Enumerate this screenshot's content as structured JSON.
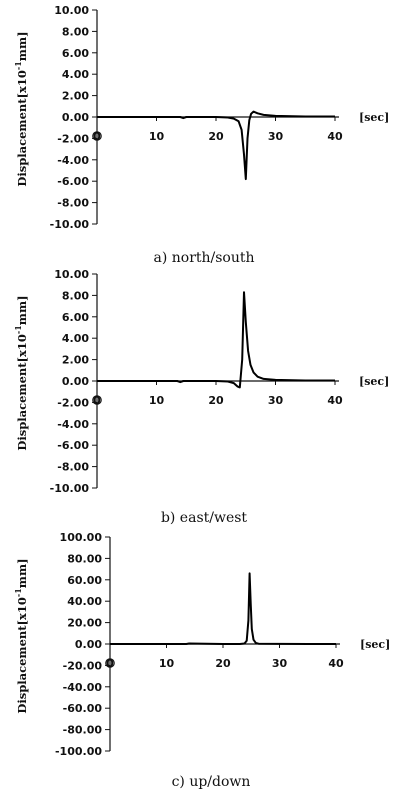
{
  "chart_data": [
    {
      "type": "line",
      "caption": "a) north/south",
      "ylabel": "Displacement[x10",
      "ylabel_exp": "-1",
      "ylabel_unit": "mm]",
      "xunit": "[sec]",
      "xlim": [
        0,
        40
      ],
      "ylim": [
        -10,
        10
      ],
      "yticks": [
        "10.00",
        "8.00",
        "6.00",
        "4.00",
        "2.00",
        "0.00",
        "-2.00",
        "-4.00",
        "-6.00",
        "-8.00",
        "-10.00"
      ],
      "xticks": [
        "0",
        "10",
        "20",
        "30",
        "40"
      ],
      "series": [
        {
          "x": [
            0,
            10,
            14,
            14.5,
            15,
            20,
            22,
            23,
            23.8,
            24.3,
            24.7,
            25.0,
            25.3,
            25.6,
            25.9,
            26.3,
            27,
            28,
            30,
            35,
            40
          ],
          "y": [
            0,
            0,
            0,
            -0.1,
            0,
            0,
            -0.05,
            -0.15,
            -0.4,
            -1.2,
            -3.5,
            -5.8,
            -2.0,
            -0.3,
            0.3,
            0.5,
            0.35,
            0.2,
            0.1,
            0.05,
            0.05
          ]
        }
      ]
    },
    {
      "type": "line",
      "caption": "b) east/west",
      "ylabel": "Displacement[x10",
      "ylabel_exp": "-1",
      "ylabel_unit": "mm]",
      "xunit": "[sec]",
      "xlim": [
        0,
        40
      ],
      "ylim": [
        -10,
        10
      ],
      "yticks": [
        "10.00",
        "8.00",
        "6.00",
        "4.00",
        "2.00",
        "0.00",
        "-2.00",
        "-4.00",
        "-6.00",
        "-8.00",
        "-10.00"
      ],
      "xticks": [
        "0",
        "10",
        "20",
        "30",
        "40"
      ],
      "series": [
        {
          "x": [
            0,
            10,
            13.5,
            14,
            14.5,
            20,
            22,
            23,
            23.6,
            24.0,
            24.4,
            24.7,
            25.0,
            25.4,
            25.8,
            26.3,
            27,
            28,
            30,
            35,
            40
          ],
          "y": [
            0,
            0,
            0,
            -0.1,
            0,
            0,
            -0.05,
            -0.2,
            -0.5,
            -0.6,
            2.0,
            8.3,
            5.5,
            2.8,
            1.5,
            0.8,
            0.4,
            0.2,
            0.1,
            0.05,
            0.05
          ]
        }
      ]
    },
    {
      "type": "line",
      "caption": "c) up/down",
      "ylabel": "Displacement[x10",
      "ylabel_exp": "-1",
      "ylabel_unit": "mm]",
      "xunit": "[sec]",
      "xlim": [
        0,
        40
      ],
      "ylim": [
        -100,
        100
      ],
      "yticks": [
        "100.00",
        "80.00",
        "60.00",
        "40.00",
        "20.00",
        "0.00",
        "-20.00",
        "-40.00",
        "-60.00",
        "-80.00",
        "-100.00"
      ],
      "xticks": [
        "0",
        "10",
        "20",
        "30",
        "40"
      ],
      "series": [
        {
          "x": [
            0,
            10,
            13.5,
            14,
            20,
            23,
            23.8,
            24.2,
            24.5,
            24.7,
            24.9,
            25.1,
            25.4,
            25.8,
            26.3,
            30,
            35,
            40
          ],
          "y": [
            0,
            0,
            0,
            0.5,
            0,
            0,
            0.5,
            3,
            22,
            66,
            38,
            14,
            4,
            1,
            0.3,
            0.1,
            0,
            0
          ]
        }
      ]
    }
  ]
}
